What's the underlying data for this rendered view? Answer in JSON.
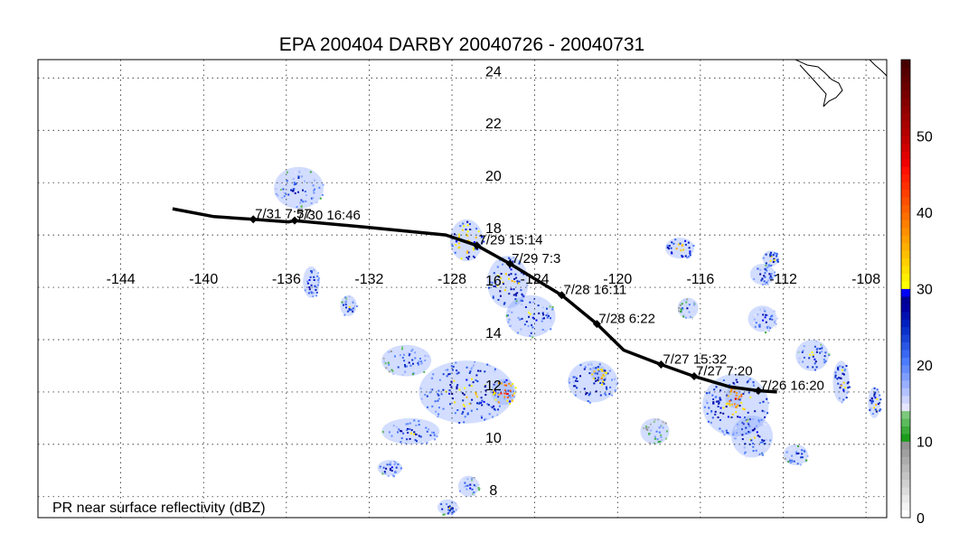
{
  "title": "EPA 200404 DARBY 20040726 - 20040731",
  "map_extent": {
    "lon_min": -148,
    "lon_max": -107,
    "lat_min": 7.2,
    "lat_max": 24.7
  },
  "lon_ticks": [
    -144,
    -140,
    -136,
    -132,
    -128,
    -124,
    -120,
    -116,
    -112,
    -108
  ],
  "lat_ticks": [
    8,
    10,
    12,
    14,
    16,
    18,
    20,
    22,
    24
  ],
  "lon_label_lat": 16,
  "lat_label_lon": -126,
  "caption": "PR near surface reflectivity (dBZ)",
  "colorbar": {
    "unit": "dBZ",
    "min": 0,
    "max": 60,
    "ticks": [
      0,
      10,
      20,
      30,
      40,
      50
    ],
    "colors": [
      "#ffffff",
      "#f4f4f4",
      "#e9e9e9",
      "#dcdcdc",
      "#d0d0d0",
      "#c4c4c4",
      "#b8b8b8",
      "#acacac",
      "#a0a0a0",
      "#949494",
      "#1c9c1c",
      "#3cab3c",
      "#5cba5c",
      "#7cc97c",
      "#e6e6ff",
      "#ccd4ff",
      "#b2c2ff",
      "#98b0ff",
      "#7e9eff",
      "#648cff",
      "#4b7bff",
      "#3a68f2",
      "#2a56e5",
      "#1a44d8",
      "#0a32cb",
      "#0020be",
      "#0010b0",
      "#0000a2",
      "#000094",
      "#0000ff",
      "#ffff00",
      "#ffef00",
      "#ffdf00",
      "#ffcf00",
      "#ffbf00",
      "#ffaf00",
      "#ff9f00",
      "#ff8f00",
      "#ff7f00",
      "#ff6f00",
      "#ff5f00",
      "#ff4f00",
      "#ff3f00",
      "#ff2f00",
      "#ff1f00",
      "#ff0f00",
      "#f00000",
      "#e00000",
      "#d00000",
      "#c00000",
      "#b40000",
      "#a80000",
      "#9c0000",
      "#900000",
      "#840000",
      "#780000",
      "#6c0000",
      "#600000",
      "#540000",
      "#480000"
    ]
  },
  "track": [
    {
      "lon": -141.5,
      "lat": 19.0,
      "label": ""
    },
    {
      "lon": -139.5,
      "lat": 18.7,
      "label": ""
    },
    {
      "lon": -137.6,
      "lat": 18.6,
      "label": "7/31 7:57"
    },
    {
      "lon": -135.9,
      "lat": 18.5,
      "label": ""
    },
    {
      "lon": -135.6,
      "lat": 18.55,
      "label": "7/30 16:46"
    },
    {
      "lon": -132.2,
      "lat": 18.3,
      "label": ""
    },
    {
      "lon": -128.3,
      "lat": 18.0,
      "label": ""
    },
    {
      "lon": -126.8,
      "lat": 17.6,
      "label": "7/29 15:14"
    },
    {
      "lon": -125.2,
      "lat": 16.9,
      "label": "7/29 7:3"
    },
    {
      "lon": -122.7,
      "lat": 15.7,
      "label": "7/28 16:11"
    },
    {
      "lon": -121.0,
      "lat": 14.6,
      "label": "7/28 6:22"
    },
    {
      "lon": -119.7,
      "lat": 13.6,
      "label": ""
    },
    {
      "lon": -117.9,
      "lat": 13.05,
      "label": "7/27 15:32"
    },
    {
      "lon": -116.3,
      "lat": 12.6,
      "label": "7/27 7:20"
    },
    {
      "lon": -114.6,
      "lat": 12.2,
      "label": ""
    },
    {
      "lon": -113.2,
      "lat": 12.05,
      "label": "7/26 16:20"
    },
    {
      "lon": -112.3,
      "lat": 12.0,
      "label": ""
    }
  ],
  "echo_cells": [
    {
      "lon": -135.4,
      "lat": 19.8,
      "rlon": 1.2,
      "rlat": 0.8,
      "dbz": 28
    },
    {
      "lon": -134.8,
      "lat": 16.2,
      "rlon": 0.4,
      "rlat": 0.6,
      "dbz": 32
    },
    {
      "lon": -133.0,
      "lat": 15.3,
      "rlon": 0.4,
      "rlat": 0.4,
      "dbz": 30
    },
    {
      "lon": -127.3,
      "lat": 17.8,
      "rlon": 0.8,
      "rlat": 0.8,
      "dbz": 38
    },
    {
      "lon": -125.3,
      "lat": 16.2,
      "rlon": 1.0,
      "rlat": 1.0,
      "dbz": 35
    },
    {
      "lon": -124.2,
      "lat": 14.9,
      "rlon": 1.2,
      "rlat": 0.8,
      "dbz": 30
    },
    {
      "lon": -127.3,
      "lat": 12.0,
      "rlon": 2.3,
      "rlat": 1.2,
      "dbz": 33
    },
    {
      "lon": -125.5,
      "lat": 12.0,
      "rlon": 0.6,
      "rlat": 0.5,
      "dbz": 45
    },
    {
      "lon": -130.2,
      "lat": 13.2,
      "rlon": 1.2,
      "rlat": 0.6,
      "dbz": 26
    },
    {
      "lon": -130.0,
      "lat": 10.5,
      "rlon": 1.4,
      "rlat": 0.5,
      "dbz": 30
    },
    {
      "lon": -131.0,
      "lat": 9.1,
      "rlon": 0.6,
      "rlat": 0.3,
      "dbz": 30
    },
    {
      "lon": -127.2,
      "lat": 8.4,
      "rlon": 0.5,
      "rlat": 0.4,
      "dbz": 28
    },
    {
      "lon": -121.2,
      "lat": 12.4,
      "rlon": 1.2,
      "rlat": 0.8,
      "dbz": 32
    },
    {
      "lon": -120.9,
      "lat": 12.7,
      "rlon": 0.4,
      "rlat": 0.3,
      "dbz": 42
    },
    {
      "lon": -117.0,
      "lat": 17.5,
      "rlon": 0.7,
      "rlat": 0.4,
      "dbz": 36
    },
    {
      "lon": -113.0,
      "lat": 16.5,
      "rlon": 0.6,
      "rlat": 0.4,
      "dbz": 30
    },
    {
      "lon": -112.6,
      "lat": 17.1,
      "rlon": 0.4,
      "rlat": 0.3,
      "dbz": 34
    },
    {
      "lon": -114.3,
      "lat": 11.5,
      "rlon": 1.6,
      "rlat": 1.2,
      "dbz": 34
    },
    {
      "lon": -114.4,
      "lat": 11.8,
      "rlon": 0.4,
      "rlat": 0.4,
      "dbz": 48
    },
    {
      "lon": -113.5,
      "lat": 10.3,
      "rlon": 1.0,
      "rlat": 0.8,
      "dbz": 30
    },
    {
      "lon": -110.6,
      "lat": 13.4,
      "rlon": 0.8,
      "rlat": 0.6,
      "dbz": 30
    },
    {
      "lon": -109.2,
      "lat": 12.4,
      "rlon": 0.4,
      "rlat": 0.8,
      "dbz": 34
    },
    {
      "lon": -107.6,
      "lat": 11.6,
      "rlon": 0.3,
      "rlat": 0.6,
      "dbz": 33
    },
    {
      "lon": -113.0,
      "lat": 14.8,
      "rlon": 0.7,
      "rlat": 0.5,
      "dbz": 28
    },
    {
      "lon": -118.2,
      "lat": 10.5,
      "rlon": 0.7,
      "rlat": 0.5,
      "dbz": 22
    },
    {
      "lon": -128.2,
      "lat": 7.6,
      "rlon": 0.5,
      "rlat": 0.3,
      "dbz": 30
    },
    {
      "lon": -111.4,
      "lat": 9.6,
      "rlon": 0.6,
      "rlat": 0.4,
      "dbz": 28
    },
    {
      "lon": -116.6,
      "lat": 15.2,
      "rlon": 0.5,
      "rlat": 0.4,
      "dbz": 26
    }
  ]
}
